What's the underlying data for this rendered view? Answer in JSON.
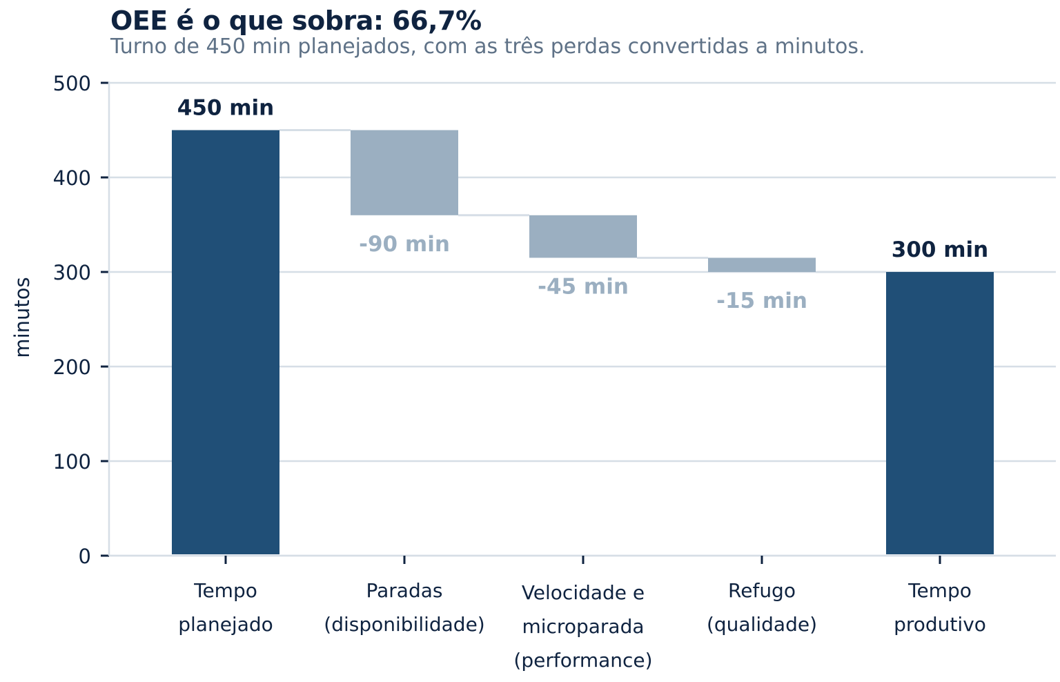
{
  "chart_data": {
    "type": "waterfall",
    "title": "OEE é o que sobra: 66,7%",
    "subtitle": "Turno de 450 min planejados, com as três perdas convertidas a minutos.",
    "ylabel": "minutos",
    "xlabel": "",
    "ylim": [
      0,
      500
    ],
    "yticks": [
      0,
      100,
      200,
      300,
      400,
      500
    ],
    "grid": true,
    "categories": [
      [
        "Tempo",
        "planejado"
      ],
      [
        "Paradas",
        "(disponibilidade)"
      ],
      [
        "Velocidade e",
        "microparada",
        "(performance)"
      ],
      [
        "Refugo",
        "(qualidade)"
      ],
      [
        "Tempo",
        "produtivo"
      ]
    ],
    "steps": [
      {
        "kind": "total",
        "value": 450,
        "label": "450 min"
      },
      {
        "kind": "loss",
        "value": -90,
        "label": "-90 min"
      },
      {
        "kind": "loss",
        "value": -45,
        "label": "-45 min"
      },
      {
        "kind": "loss",
        "value": -15,
        "label": "-15 min"
      },
      {
        "kind": "total",
        "value": 300,
        "label": "300 min"
      }
    ],
    "colors": {
      "total": "#204f77",
      "loss": "#9bafc1",
      "loss_label": "#9bafc1",
      "total_label": "#0f2340",
      "grid": "#d6dee6",
      "axis": "#0f2340"
    }
  }
}
